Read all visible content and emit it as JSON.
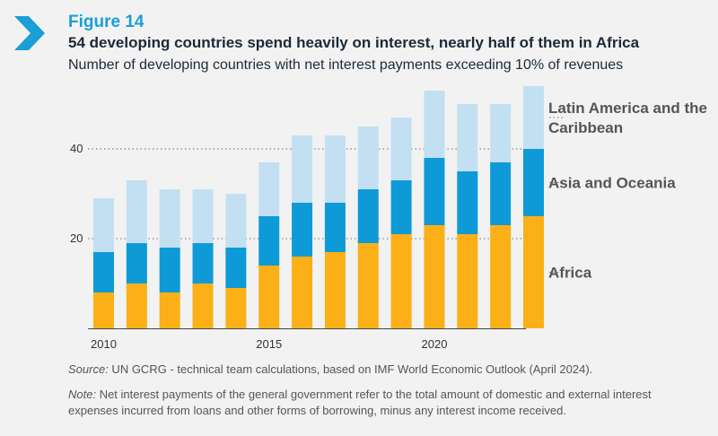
{
  "figure": {
    "label": "Figure 14",
    "title": "54 developing countries spend heavily on interest, nearly half of them in Africa",
    "subtitle": "Number of developing countries with net interest payments exceeding 10% of revenues"
  },
  "colors": {
    "accent": "#1a9fd6",
    "africa": "#fbb017",
    "asia": "#0e9ad7",
    "latam": "#c3e0f2"
  },
  "chart_data": {
    "type": "bar",
    "stacked": true,
    "title": "Number of developing countries with net interest payments exceeding 10% of revenues",
    "x": [
      2010,
      2011,
      2012,
      2013,
      2014,
      2015,
      2016,
      2017,
      2018,
      2019,
      2020,
      2021,
      2022,
      2023
    ],
    "xticks": [
      "2010",
      "2015",
      "2020"
    ],
    "yticks": [
      "20",
      "40"
    ],
    "ytick_values": [
      20,
      40
    ],
    "ylim": [
      0,
      54
    ],
    "grid": "dotted horizontal",
    "series": [
      {
        "name": "Africa",
        "color": "#fbb017",
        "values": [
          8,
          10,
          8,
          10,
          9,
          14,
          16,
          17,
          19,
          21,
          23,
          21,
          23,
          25
        ]
      },
      {
        "name": "Asia and Oceania",
        "color": "#0e9ad7",
        "values": [
          9,
          9,
          10,
          9,
          9,
          11,
          12,
          11,
          12,
          12,
          15,
          14,
          14,
          15
        ]
      },
      {
        "name": "Latin America and the Caribbean",
        "color": "#c3e0f2",
        "values": [
          12,
          14,
          13,
          12,
          12,
          12,
          15,
          15,
          14,
          14,
          15,
          15,
          13,
          14
        ]
      }
    ],
    "legend_lines": {
      "africa": [
        "Africa"
      ],
      "asia": [
        "Asia and Oceania"
      ],
      "latam": [
        "Latin America and the",
        "Caribbean"
      ]
    }
  },
  "footer": {
    "source_label": "Source:",
    "source_text": " UN GCRG - technical team calculations, based on IMF World Economic Outlook (April 2024).",
    "note_label": "Note:",
    "note_text": " Net interest payments of the general government refer to the total amount of domestic and external interest expenses incurred from loans and other forms of borrowing, minus any interest income received."
  }
}
